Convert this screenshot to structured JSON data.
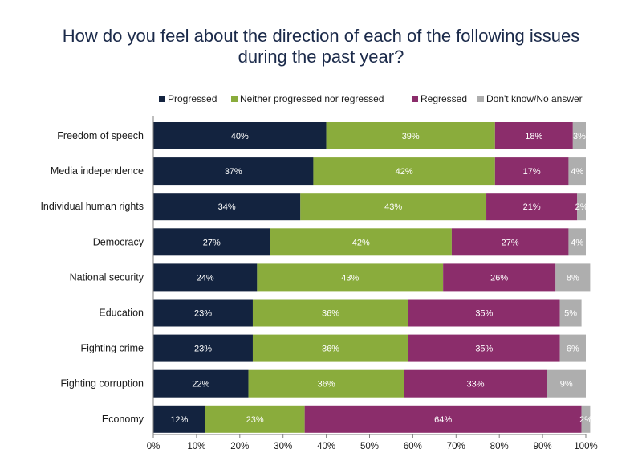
{
  "title_lines": [
    "How do you feel about the direction of each of the following issues",
    "during the past year?"
  ],
  "colors": {
    "Progressed": "#13233f",
    "Neither progressed nor regressed": "#8aac3c",
    "Regressed": "#8b2d6b",
    "Don't know/No answer": "#aeaeae"
  },
  "chart_data": {
    "type": "bar",
    "orientation": "horizontal",
    "stacked": true,
    "title": "How do you feel about the direction of each of the following issues during the past year?",
    "categories": [
      "Freedom of speech",
      "Media independence",
      "Individual human rights",
      "Democracy",
      "National security",
      "Education",
      "Fighting crime",
      "Fighting corruption",
      "Economy"
    ],
    "series": [
      {
        "name": "Progressed",
        "values": [
          40,
          37,
          34,
          27,
          24,
          23,
          23,
          22,
          12
        ]
      },
      {
        "name": "Neither progressed nor regressed",
        "values": [
          39,
          42,
          43,
          42,
          43,
          36,
          36,
          36,
          23
        ]
      },
      {
        "name": "Regressed",
        "values": [
          18,
          17,
          21,
          27,
          26,
          35,
          35,
          33,
          64
        ]
      },
      {
        "name": "Don't know/No answer",
        "values": [
          3,
          4,
          2,
          4,
          8,
          5,
          6,
          9,
          2
        ]
      }
    ],
    "value_labels": [
      [
        "40%",
        "39%",
        "18%",
        "3%"
      ],
      [
        "37%",
        "42%",
        "17%",
        "4%"
      ],
      [
        "34%",
        "43%",
        "21%",
        "2%"
      ],
      [
        "27%",
        "42%",
        "27%",
        "4%"
      ],
      [
        "24%",
        "43%",
        "26%",
        "8%"
      ],
      [
        "23%",
        "36%",
        "35%",
        "5%"
      ],
      [
        "23%",
        "36%",
        "35%",
        "6%"
      ],
      [
        "22%",
        "36%",
        "33%",
        "9%"
      ],
      [
        "12%",
        "23%",
        "64%",
        "2%"
      ]
    ],
    "xlim": [
      0,
      100
    ],
    "x_ticks": [
      0,
      10,
      20,
      30,
      40,
      50,
      60,
      70,
      80,
      90,
      100
    ],
    "x_tick_labels": [
      "0%",
      "10%",
      "20%",
      "30%",
      "40%",
      "50%",
      "60%",
      "70%",
      "80%",
      "90%",
      "100%"
    ],
    "legend_position": "top",
    "grid": false
  }
}
